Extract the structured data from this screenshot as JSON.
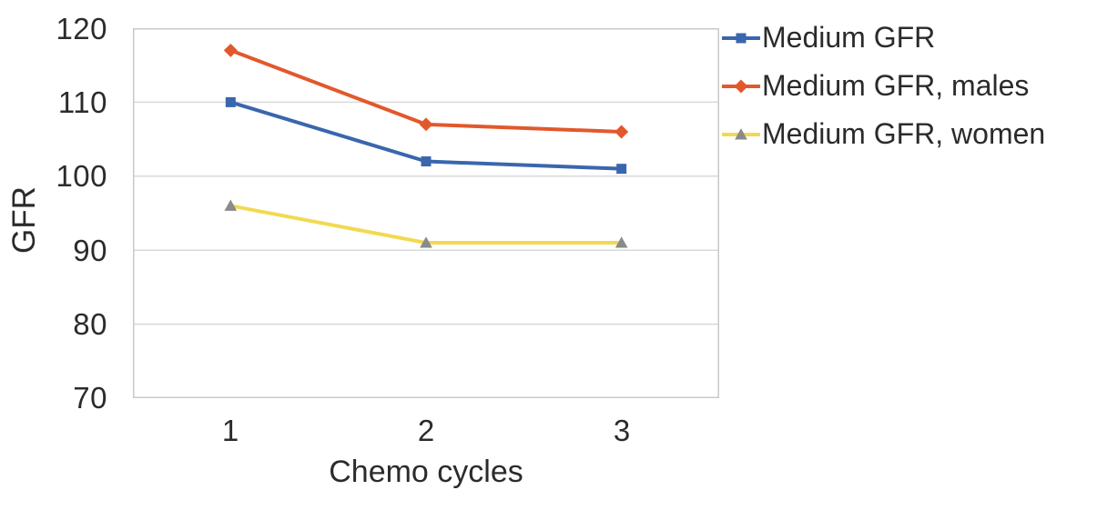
{
  "chart_data": {
    "type": "line",
    "title": "",
    "xlabel": "Chemo cycles",
    "ylabel": "GFR",
    "categories": [
      "1",
      "2",
      "3"
    ],
    "series": [
      {
        "name": "Medium GFR",
        "values": [
          110,
          102,
          101
        ],
        "color": "#3a66ad",
        "marker": "square",
        "marker_color": "#3a66ad"
      },
      {
        "name": "Medium GFR, males",
        "values": [
          117,
          107,
          106
        ],
        "color": "#e2582c",
        "marker": "diamond",
        "marker_color": "#e2582c"
      },
      {
        "name": "Medium GFR, women",
        "values": [
          96,
          91,
          91
        ],
        "color": "#f2d950",
        "marker": "triangle",
        "marker_color": "#8a8a8a"
      }
    ],
    "ylim": [
      70,
      120
    ],
    "ytick_step": 10,
    "yticks": [
      "120",
      "110",
      "100",
      "90",
      "80",
      "70"
    ],
    "grid": true,
    "grid_color": "#d9d9d9",
    "border_color": "#c9c9c9",
    "text_color": "#2b2b2b",
    "legend_position": "right"
  }
}
